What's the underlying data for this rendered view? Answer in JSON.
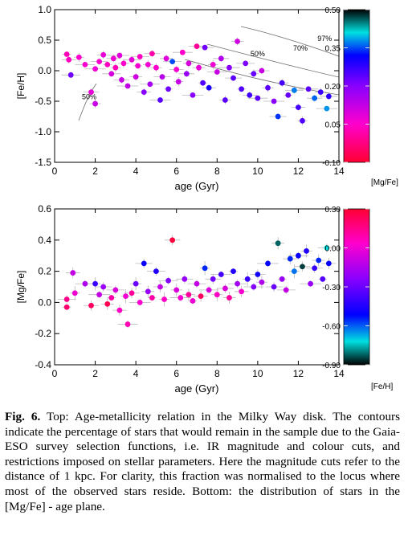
{
  "chart_data": [
    {
      "type": "scatter",
      "xlabel": "age (Gyr)",
      "ylabel": "[Fe/H]",
      "xlim": [
        0,
        14
      ],
      "ylim": [
        -1.5,
        1.0
      ],
      "xticks": [
        "0",
        "2",
        "4",
        "6",
        "8",
        "10",
        "12",
        "14"
      ],
      "yticks": [
        "-1.5",
        "-1.0",
        "-0.5",
        "0.0",
        "0.5",
        "1.0"
      ],
      "colorbar": {
        "label": "[Mg/Fe]",
        "range": [
          -0.1,
          0.5
        ],
        "ticks": [
          "0.50",
          "0.35",
          "0.20",
          "0.05",
          "-0.10"
        ]
      },
      "contour_labels": [
        {
          "text": "97%",
          "x": 13.3,
          "y": 0.49
        },
        {
          "text": "70%",
          "x": 12.1,
          "y": 0.33
        },
        {
          "text": "50%",
          "x": 10.0,
          "y": 0.24
        },
        {
          "text": "50%",
          "x": 1.7,
          "y": -0.47
        }
      ],
      "points": [
        {
          "x": 0.6,
          "y": 0.27,
          "c": 0.03
        },
        {
          "x": 0.8,
          "y": -0.07,
          "c": 0.22
        },
        {
          "x": 0.7,
          "y": 0.18,
          "c": 0.04
        },
        {
          "x": 1.2,
          "y": 0.22,
          "c": 0.05
        },
        {
          "x": 1.5,
          "y": 0.1,
          "c": 0.06
        },
        {
          "x": 1.8,
          "y": -0.35,
          "c": 0.08
        },
        {
          "x": 2.0,
          "y": -0.54,
          "c": 0.12
        },
        {
          "x": 2.0,
          "y": 0.03,
          "c": 0.07
        },
        {
          "x": 2.2,
          "y": 0.15,
          "c": 0.05
        },
        {
          "x": 2.4,
          "y": 0.26,
          "c": 0.08
        },
        {
          "x": 2.6,
          "y": 0.1,
          "c": 0.04
        },
        {
          "x": 2.8,
          "y": -0.05,
          "c": 0.1
        },
        {
          "x": 2.9,
          "y": 0.2,
          "c": 0.07
        },
        {
          "x": 3.0,
          "y": 0.05,
          "c": 0.03
        },
        {
          "x": 3.2,
          "y": 0.25,
          "c": 0.09
        },
        {
          "x": 3.3,
          "y": -0.15,
          "c": 0.12
        },
        {
          "x": 3.4,
          "y": 0.12,
          "c": 0.05
        },
        {
          "x": 3.6,
          "y": -0.25,
          "c": 0.13
        },
        {
          "x": 3.8,
          "y": 0.18,
          "c": 0.08
        },
        {
          "x": 4.0,
          "y": -0.1,
          "c": 0.11
        },
        {
          "x": 4.1,
          "y": 0.08,
          "c": 0.06
        },
        {
          "x": 4.2,
          "y": 0.23,
          "c": 0.04
        },
        {
          "x": 4.4,
          "y": -0.35,
          "c": 0.2
        },
        {
          "x": 4.6,
          "y": 0.1,
          "c": 0.07
        },
        {
          "x": 4.7,
          "y": -0.22,
          "c": 0.16
        },
        {
          "x": 4.8,
          "y": 0.28,
          "c": 0.02
        },
        {
          "x": 5.0,
          "y": 0.05,
          "c": 0.05
        },
        {
          "x": 5.2,
          "y": -0.48,
          "c": 0.24
        },
        {
          "x": 5.3,
          "y": -0.1,
          "c": 0.14
        },
        {
          "x": 5.5,
          "y": 0.2,
          "c": 0.09
        },
        {
          "x": 5.6,
          "y": -0.3,
          "c": 0.22
        },
        {
          "x": 5.8,
          "y": 0.15,
          "c": 0.35
        },
        {
          "x": 6.0,
          "y": 0.02,
          "c": 0.06
        },
        {
          "x": 6.1,
          "y": -0.18,
          "c": 0.12
        },
        {
          "x": 6.3,
          "y": 0.3,
          "c": 0.05
        },
        {
          "x": 6.5,
          "y": -0.05,
          "c": 0.18
        },
        {
          "x": 6.6,
          "y": 0.12,
          "c": 0.1
        },
        {
          "x": 6.8,
          "y": -0.4,
          "c": 0.2
        },
        {
          "x": 7.0,
          "y": 0.4,
          "c": 0.0
        },
        {
          "x": 7.1,
          "y": 0.05,
          "c": 0.08
        },
        {
          "x": 7.3,
          "y": -0.2,
          "c": 0.25
        },
        {
          "x": 7.4,
          "y": 0.38,
          "c": 0.22
        },
        {
          "x": 7.6,
          "y": -0.28,
          "c": 0.3
        },
        {
          "x": 7.8,
          "y": 0.1,
          "c": 0.07
        },
        {
          "x": 8.0,
          "y": -0.02,
          "c": 0.12
        },
        {
          "x": 8.2,
          "y": 0.2,
          "c": 0.15
        },
        {
          "x": 8.4,
          "y": -0.48,
          "c": 0.24
        },
        {
          "x": 8.6,
          "y": 0.05,
          "c": 0.2
        },
        {
          "x": 8.8,
          "y": -0.12,
          "c": 0.24
        },
        {
          "x": 9.0,
          "y": 0.48,
          "c": 0.11
        },
        {
          "x": 9.2,
          "y": -0.3,
          "c": 0.25
        },
        {
          "x": 9.4,
          "y": 0.12,
          "c": 0.21
        },
        {
          "x": 9.6,
          "y": -0.4,
          "c": 0.26
        },
        {
          "x": 9.8,
          "y": -0.05,
          "c": 0.23
        },
        {
          "x": 10.0,
          "y": -0.45,
          "c": 0.24
        },
        {
          "x": 10.2,
          "y": 0.0,
          "c": 0.12
        },
        {
          "x": 10.5,
          "y": -0.28,
          "c": 0.24
        },
        {
          "x": 10.8,
          "y": -0.5,
          "c": 0.2
        },
        {
          "x": 11.0,
          "y": -0.75,
          "c": 0.34
        },
        {
          "x": 11.2,
          "y": -0.2,
          "c": 0.26
        },
        {
          "x": 11.5,
          "y": -0.4,
          "c": 0.23
        },
        {
          "x": 11.8,
          "y": -0.32,
          "c": 0.37
        },
        {
          "x": 12.0,
          "y": -0.6,
          "c": 0.26
        },
        {
          "x": 12.2,
          "y": -0.82,
          "c": 0.25
        },
        {
          "x": 12.5,
          "y": -0.3,
          "c": 0.24
        },
        {
          "x": 12.8,
          "y": -0.45,
          "c": 0.36
        },
        {
          "x": 13.1,
          "y": -0.35,
          "c": 0.27
        },
        {
          "x": 13.4,
          "y": -0.62,
          "c": 0.38
        },
        {
          "x": 13.5,
          "y": -0.42,
          "c": 0.28
        }
      ]
    },
    {
      "type": "scatter",
      "xlabel": "age (Gyr)",
      "ylabel": "[Mg/Fe]",
      "xlim": [
        0,
        14
      ],
      "ylim": [
        -0.4,
        0.6
      ],
      "xticks": [
        "0",
        "2",
        "4",
        "6",
        "8",
        "10",
        "12",
        "14"
      ],
      "yticks": [
        "-0.4",
        "-0.2",
        "0.0",
        "0.2",
        "0.4",
        "0.6"
      ],
      "colorbar": {
        "label": "[Fe/H]",
        "range": [
          -0.9,
          0.3
        ],
        "ticks": [
          "0.30",
          "0.00",
          "-0.30",
          "-0.60",
          "-0.90"
        ]
      },
      "points": [
        {
          "x": 0.6,
          "y": -0.03,
          "c": 0.2
        },
        {
          "x": 0.6,
          "y": 0.02,
          "c": 0.15
        },
        {
          "x": 0.9,
          "y": 0.19,
          "c": -0.1
        },
        {
          "x": 1.0,
          "y": 0.06,
          "c": 0.0
        },
        {
          "x": 1.5,
          "y": 0.12,
          "c": -0.15
        },
        {
          "x": 1.8,
          "y": -0.02,
          "c": 0.22
        },
        {
          "x": 2.0,
          "y": 0.12,
          "c": -0.4
        },
        {
          "x": 2.2,
          "y": 0.05,
          "c": -0.1
        },
        {
          "x": 2.4,
          "y": 0.1,
          "c": -0.2
        },
        {
          "x": 2.6,
          "y": -0.01,
          "c": 0.25
        },
        {
          "x": 2.8,
          "y": 0.03,
          "c": 0.1
        },
        {
          "x": 3.0,
          "y": 0.08,
          "c": -0.05
        },
        {
          "x": 3.2,
          "y": -0.05,
          "c": 0.05
        },
        {
          "x": 3.5,
          "y": 0.04,
          "c": 0.0
        },
        {
          "x": 3.6,
          "y": -0.14,
          "c": 0.08
        },
        {
          "x": 3.8,
          "y": 0.06,
          "c": 0.12
        },
        {
          "x": 4.0,
          "y": 0.12,
          "c": -0.3
        },
        {
          "x": 4.2,
          "y": 0.0,
          "c": 0.02
        },
        {
          "x": 4.4,
          "y": 0.25,
          "c": -0.5
        },
        {
          "x": 4.6,
          "y": 0.07,
          "c": -0.2
        },
        {
          "x": 4.8,
          "y": 0.03,
          "c": 0.1
        },
        {
          "x": 5.0,
          "y": 0.2,
          "c": -0.45
        },
        {
          "x": 5.2,
          "y": 0.1,
          "c": -0.1
        },
        {
          "x": 5.4,
          "y": 0.02,
          "c": 0.05
        },
        {
          "x": 5.6,
          "y": 0.14,
          "c": -0.25
        },
        {
          "x": 5.8,
          "y": 0.4,
          "c": 0.28
        },
        {
          "x": 6.0,
          "y": 0.08,
          "c": -0.05
        },
        {
          "x": 6.2,
          "y": 0.03,
          "c": 0.02
        },
        {
          "x": 6.4,
          "y": 0.15,
          "c": -0.2
        },
        {
          "x": 6.6,
          "y": 0.05,
          "c": 0.12
        },
        {
          "x": 6.8,
          "y": 0.01,
          "c": 0.0
        },
        {
          "x": 7.0,
          "y": 0.12,
          "c": -0.1
        },
        {
          "x": 7.2,
          "y": 0.04,
          "c": 0.22
        },
        {
          "x": 7.4,
          "y": 0.22,
          "c": -0.55
        },
        {
          "x": 7.6,
          "y": 0.08,
          "c": -0.05
        },
        {
          "x": 7.8,
          "y": 0.15,
          "c": -0.28
        },
        {
          "x": 8.0,
          "y": 0.05,
          "c": 0.05
        },
        {
          "x": 8.2,
          "y": 0.18,
          "c": -0.38
        },
        {
          "x": 8.4,
          "y": 0.09,
          "c": -0.05
        },
        {
          "x": 8.6,
          "y": 0.03,
          "c": 0.12
        },
        {
          "x": 8.8,
          "y": 0.2,
          "c": -0.45
        },
        {
          "x": 9.0,
          "y": 0.12,
          "c": -0.18
        },
        {
          "x": 9.2,
          "y": 0.07,
          "c": 0.02
        },
        {
          "x": 9.5,
          "y": 0.15,
          "c": -0.4
        },
        {
          "x": 9.8,
          "y": 0.1,
          "c": -0.25
        },
        {
          "x": 10.0,
          "y": 0.18,
          "c": -0.48
        },
        {
          "x": 10.2,
          "y": 0.13,
          "c": -0.15
        },
        {
          "x": 10.5,
          "y": 0.25,
          "c": -0.52
        },
        {
          "x": 10.8,
          "y": 0.1,
          "c": -0.3
        },
        {
          "x": 11.0,
          "y": 0.38,
          "c": -0.82
        },
        {
          "x": 11.2,
          "y": 0.15,
          "c": -0.2
        },
        {
          "x": 11.4,
          "y": 0.08,
          "c": -0.1
        },
        {
          "x": 11.6,
          "y": 0.28,
          "c": -0.55
        },
        {
          "x": 11.8,
          "y": 0.2,
          "c": -0.62
        },
        {
          "x": 12.0,
          "y": 0.3,
          "c": -0.5
        },
        {
          "x": 12.2,
          "y": 0.23,
          "c": -0.85
        },
        {
          "x": 12.4,
          "y": 0.33,
          "c": -0.45
        },
        {
          "x": 12.6,
          "y": 0.12,
          "c": -0.2
        },
        {
          "x": 12.8,
          "y": 0.22,
          "c": -0.4
        },
        {
          "x": 13.0,
          "y": 0.27,
          "c": -0.55
        },
        {
          "x": 13.2,
          "y": 0.15,
          "c": -0.35
        },
        {
          "x": 13.4,
          "y": 0.35,
          "c": -0.72
        },
        {
          "x": 13.5,
          "y": 0.25,
          "c": -0.5
        }
      ]
    }
  ],
  "caption": {
    "label": "Fig. 6.",
    "text": " Top: Age-metallicity relation in the Milky Way disk. The contours indicate the percentage of stars that would remain in the sample due to the Gaia-ESO survey selection functions, i.e. IR magnitude and colour cuts, and restrictions imposed on stellar parameters. Here the magnitude cuts refer to the distance of 1 kpc. For clarity, this fraction was normalised to the locus where most of the observed stars reside. Bottom: the distribution of stars in the [Mg/Fe] - age plane."
  }
}
